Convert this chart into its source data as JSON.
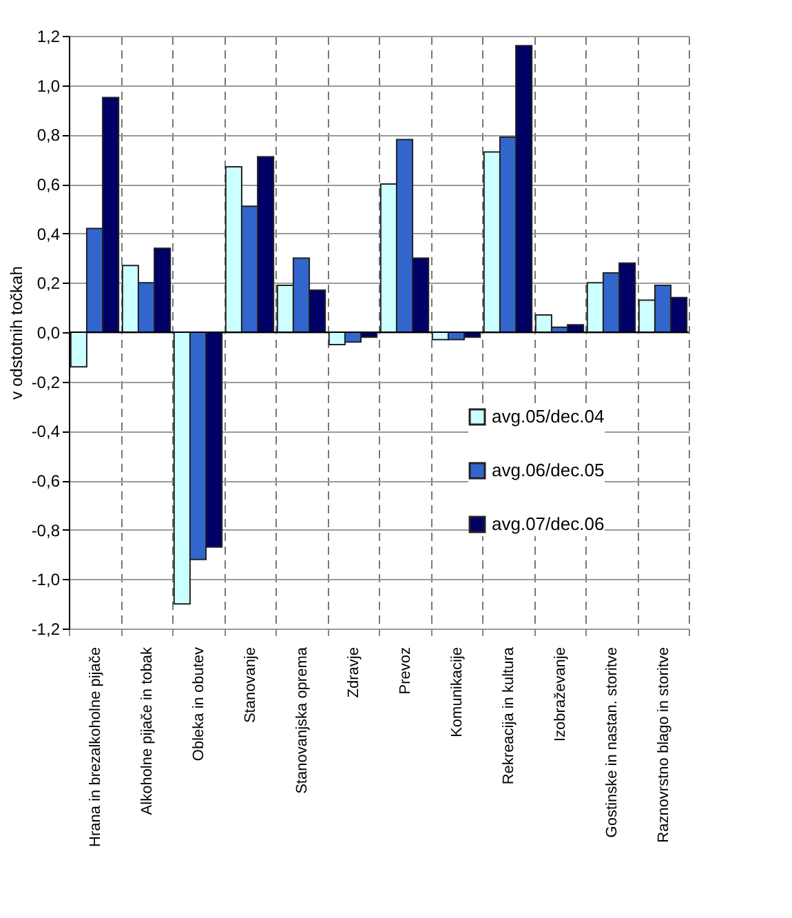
{
  "chart_data": {
    "type": "bar",
    "ylabel": "v odstotnih točkah",
    "categories": [
      "Hrana in brezalkoholne pijače",
      "Alkoholne pijače in tobak",
      "Obleka in obutev",
      "Stanovanje",
      "Stanovanjska oprema",
      "Zdravje",
      "Prevoz",
      "Komunikacije",
      "Rekreacija in kultura",
      "Izobraževanje",
      "Gostinske in nastan. storitve",
      "Raznovrstno blago in storitve"
    ],
    "series": [
      {
        "name": "avg.05/dec.04",
        "color": "#ccffff",
        "values": [
          -0.14,
          0.27,
          -1.1,
          0.67,
          0.19,
          -0.05,
          0.6,
          -0.03,
          0.73,
          0.07,
          0.2,
          0.13
        ]
      },
      {
        "name": "avg.06/dec.05",
        "color": "#3366cc",
        "values": [
          0.42,
          0.2,
          -0.92,
          0.51,
          0.3,
          -0.04,
          0.78,
          -0.03,
          0.79,
          0.02,
          0.24,
          0.19
        ]
      },
      {
        "name": "avg.07/dec.06",
        "color": "#000066",
        "values": [
          0.95,
          0.34,
          -0.87,
          0.71,
          0.17,
          -0.02,
          0.3,
          -0.02,
          1.16,
          0.03,
          0.28,
          0.14
        ]
      }
    ],
    "ylim": [
      -1.2,
      1.2
    ],
    "yticks": [
      {
        "value": -1.2,
        "label": "-1,2"
      },
      {
        "value": -1.0,
        "label": "-1,0"
      },
      {
        "value": -0.8,
        "label": "-0,8"
      },
      {
        "value": -0.6,
        "label": "-0,6"
      },
      {
        "value": -0.4,
        "label": "-0,4"
      },
      {
        "value": -0.2,
        "label": "-0,2"
      },
      {
        "value": 0,
        "label": "0,0"
      },
      {
        "value": 0.2,
        "label": "0,2"
      },
      {
        "value": 0.4,
        "label": "0,4"
      },
      {
        "value": 0.6,
        "label": "0,6"
      },
      {
        "value": 0.8,
        "label": "0,8"
      },
      {
        "value": 1.0,
        "label": "1,0"
      },
      {
        "value": 1.2,
        "label": "1,2"
      }
    ],
    "grid": true,
    "legend": "right"
  }
}
